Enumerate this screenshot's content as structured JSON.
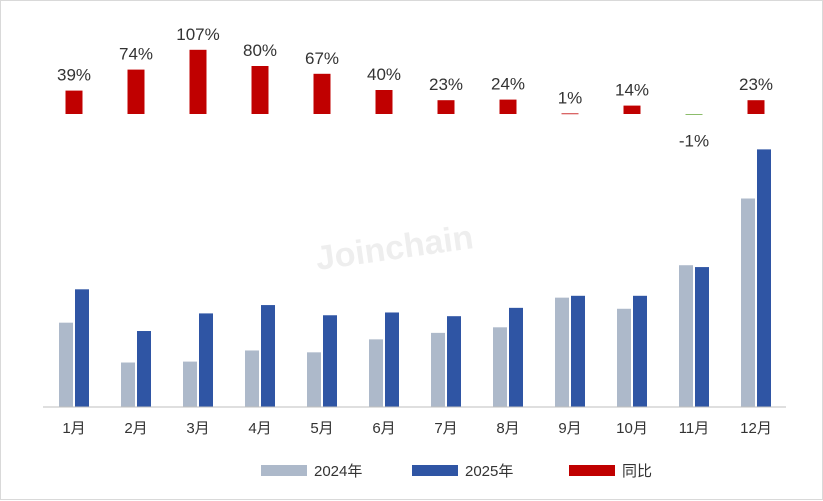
{
  "chart_data": {
    "type": "bar",
    "title": "",
    "xlabel": "",
    "ylabel": "",
    "categories": [
      "1月",
      "2月",
      "3月",
      "4月",
      "5月",
      "6月",
      "7月",
      "8月",
      "9月",
      "10月",
      "11月",
      "12月"
    ],
    "series": [
      {
        "name": "2024年",
        "color": "#adb9ca",
        "values": [
          91,
          48,
          49,
          61,
          59,
          73,
          80,
          86,
          118,
          106,
          153,
          225
        ]
      },
      {
        "name": "2025年",
        "color": "#2f55a4",
        "values": [
          127,
          82,
          101,
          110,
          99,
          102,
          98,
          107,
          120,
          120,
          151,
          278
        ]
      },
      {
        "name": "同比",
        "color": "#c00000",
        "negative_color": "#70ad47",
        "labels_suffix": "%",
        "values": [
          39,
          74,
          107,
          80,
          67,
          40,
          23,
          24,
          1,
          14,
          -1,
          23
        ]
      }
    ],
    "ylim": [
      0,
      300
    ],
    "grid": false,
    "legend": "bottom-center"
  },
  "watermark": "Joinchain"
}
